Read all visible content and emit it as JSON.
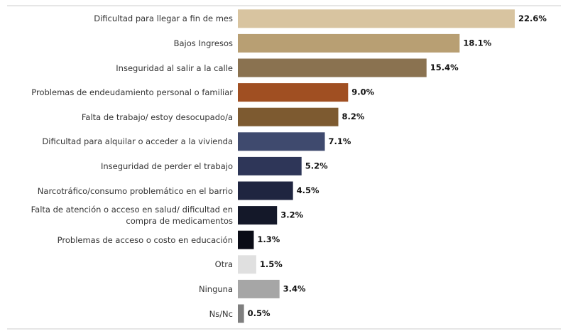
{
  "chart_data": {
    "type": "barh",
    "categories": [
      "Dificultad para llegar a fin de mes",
      "Bajos Ingresos",
      "Inseguridad al salir a la calle",
      "Problemas de endeudamiento personal o familiar",
      "Falta de trabajo/ estoy desocupado/a",
      "Dificultad para alquilar o acceder a la vivienda",
      "Inseguridad de perder el trabajo",
      "Narcotráfico/consumo problemático en el barrio",
      "Falta de atención o acceso en salud/ dificultad en compra de medicamentos",
      "Problemas de acceso o costo en educación",
      "Otra",
      "Ninguna",
      "Ns/Nc"
    ],
    "values": [
      22.6,
      18.1,
      15.4,
      9.0,
      8.2,
      7.1,
      5.2,
      4.5,
      3.2,
      1.3,
      1.5,
      3.4,
      0.5
    ],
    "value_labels": [
      "22.6%",
      "18.1%",
      "15.4%",
      "9.0%",
      "8.2%",
      "7.1%",
      "5.2%",
      "4.5%",
      "3.2%",
      "1.3%",
      "1.5%",
      "3.4%",
      "0.5%"
    ],
    "colors": [
      "#d8c4a0",
      "#b89f73",
      "#8a7250",
      "#a04f22",
      "#7d5a30",
      "#3f4a6e",
      "#2e3658",
      "#1f2540",
      "#141829",
      "#0a0c16",
      "#e0e0e0",
      "#a6a6a6",
      "#7f7f7f"
    ]
  }
}
